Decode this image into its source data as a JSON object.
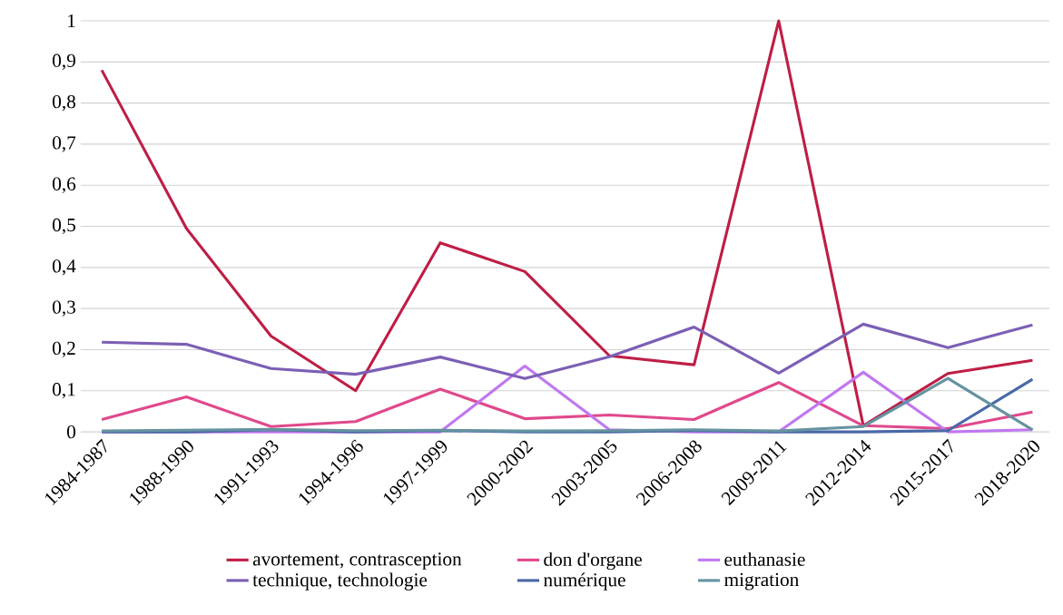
{
  "chart_data": {
    "type": "line",
    "categories": [
      "1984-1987",
      "1988-1990",
      "1991-1993",
      "1994-1996",
      "1997-1999",
      "2000-2002",
      "2003-2005",
      "2006-2008",
      "2009-2011",
      "2012-2014",
      "2015-2017",
      "2018-2020"
    ],
    "series": [
      {
        "name": "avortement, contrasception",
        "color": "#be1e45",
        "values": [
          0.88,
          0.495,
          0.233,
          0.1,
          0.46,
          0.39,
          0.185,
          0.163,
          1.0,
          0.015,
          0.142,
          0.174
        ]
      },
      {
        "name": "don d'organe",
        "color": "#e0488b",
        "values": [
          0.03,
          0.085,
          0.013,
          0.025,
          0.104,
          0.032,
          0.041,
          0.03,
          0.12,
          0.015,
          0.008,
          0.048
        ]
      },
      {
        "name": "euthanasie",
        "color": "#c077f0",
        "values": [
          0,
          0,
          0,
          0,
          0,
          0.16,
          0.005,
          0,
          0,
          0.145,
          0,
          0.005
        ]
      },
      {
        "name": "technique, technologie",
        "color": "#7b5fb5",
        "values": [
          0.218,
          0.213,
          0.154,
          0.14,
          0.182,
          0.13,
          0.183,
          0.255,
          0.143,
          0.262,
          0.205,
          0.26
        ]
      },
      {
        "name": "numérique",
        "color": "#4a68a8",
        "values": [
          0,
          0,
          0.005,
          0,
          0.003,
          0,
          0,
          0.003,
          0,
          0,
          0.003,
          0.128
        ]
      },
      {
        "name": "migration",
        "color": "#6593a0",
        "values": [
          0.002,
          0.004,
          0.006,
          0.003,
          0.004,
          0.002,
          0.003,
          0.005,
          0.002,
          0.013,
          0.13,
          0.005
        ]
      }
    ],
    "ylim": [
      0,
      1
    ],
    "yticks": [
      0,
      {
        "value": 0.1,
        "label": "0,1"
      },
      {
        "value": 0.2,
        "label": "0,2"
      },
      {
        "value": 0.3,
        "label": "0,3"
      },
      {
        "value": 0.4,
        "label": "0,4"
      },
      {
        "value": 0.5,
        "label": "0,5"
      },
      {
        "value": 0.6,
        "label": "0,6"
      },
      {
        "value": 0.7,
        "label": "0,7"
      },
      {
        "value": 0.8,
        "label": "0,8"
      },
      {
        "value": 0.9,
        "label": "0,9"
      },
      1
    ],
    "grid": "y",
    "legend": "bottom",
    "marker": "none",
    "line_style": "solid"
  }
}
